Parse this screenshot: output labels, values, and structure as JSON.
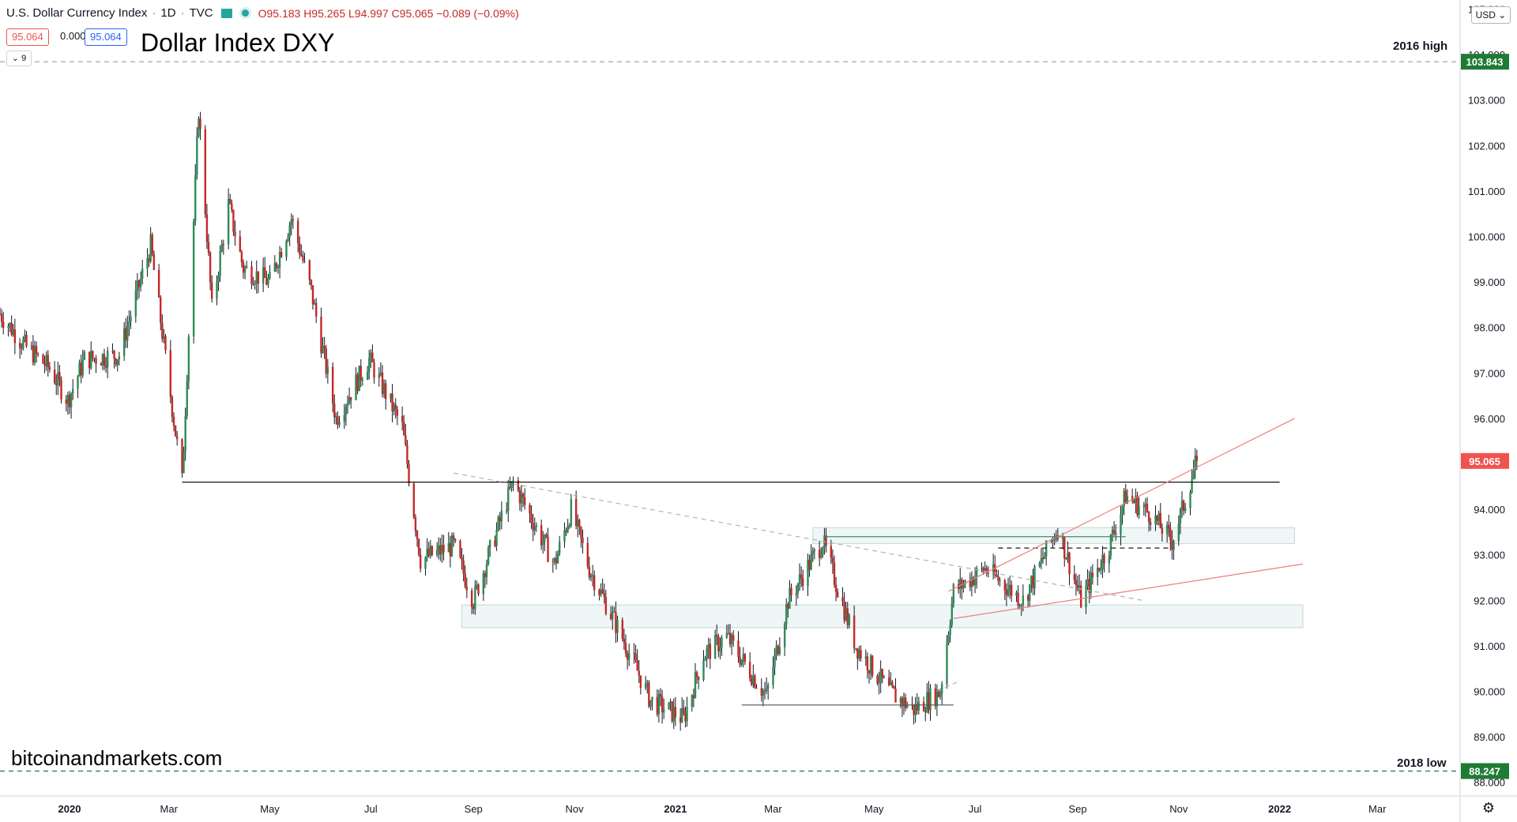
{
  "header": {
    "symbol": "U.S. Dollar Currency Index",
    "interval": "1D",
    "source": "TVC",
    "ohlc": "O95.183 H95.265 L94.997 C95.065 −0.089 (−0.09%)",
    "bid": "95.064",
    "spread": "0.000",
    "ask": "95.064",
    "indicator_count": "9",
    "currency": "USD"
  },
  "annotations": {
    "title_note": "Dollar Index DXY",
    "watermark": "bitcoinandmarkets.com",
    "high_label": "2016 high",
    "low_label": "2018 low"
  },
  "colors": {
    "up": "#26a69a",
    "down": "#ef5350",
    "candle_body_up": "#2e8b57",
    "candle_body_down": "#c62828",
    "last_price": "#ef5350",
    "level_marker": "#1e7b34",
    "trendline": "#ef7c7c",
    "zone_fill": "#e0eeee"
  },
  "chart_data": {
    "type": "candlestick",
    "y_axis_ticks": [
      "105.000",
      "104.000",
      "103.000",
      "102.000",
      "101.000",
      "100.000",
      "99.000",
      "98.000",
      "97.000",
      "96.000",
      "95.000",
      "94.000",
      "93.000",
      "92.000",
      "91.000",
      "90.000",
      "89.000",
      "88.000"
    ],
    "y_ticks_values": [
      105,
      104,
      103,
      102,
      101,
      100,
      99,
      98,
      97,
      96,
      95,
      94,
      93,
      92,
      91,
      90,
      89,
      88
    ],
    "x_axis_ticks": [
      {
        "label": "2020",
        "date": "2020-01-01",
        "bold": true
      },
      {
        "label": "Mar",
        "date": "2020-03-01",
        "bold": false
      },
      {
        "label": "May",
        "date": "2020-05-01",
        "bold": false
      },
      {
        "label": "Jul",
        "date": "2020-07-01",
        "bold": false
      },
      {
        "label": "Sep",
        "date": "2020-09-01",
        "bold": false
      },
      {
        "label": "Nov",
        "date": "2020-11-01",
        "bold": false
      },
      {
        "label": "2021",
        "date": "2021-01-01",
        "bold": true
      },
      {
        "label": "Mar",
        "date": "2021-03-01",
        "bold": false
      },
      {
        "label": "May",
        "date": "2021-05-01",
        "bold": false
      },
      {
        "label": "Jul",
        "date": "2021-07-01",
        "bold": false
      },
      {
        "label": "Sep",
        "date": "2021-09-01",
        "bold": false
      },
      {
        "label": "Nov",
        "date": "2021-11-01",
        "bold": false
      },
      {
        "label": "2022",
        "date": "2022-01-01",
        "bold": true
      },
      {
        "label": "Mar",
        "date": "2022-03-01",
        "bold": false
      }
    ],
    "x_range": [
      "2019-11-20",
      "2022-04-20"
    ],
    "y_range": [
      87.7,
      105.2
    ],
    "price_path": [
      [
        "2019-11-20",
        98.3
      ],
      [
        "2019-12-05",
        97.6
      ],
      [
        "2019-12-20",
        97.1
      ],
      [
        "2019-12-31",
        96.4
      ],
      [
        "2020-01-10",
        97.3
      ],
      [
        "2020-01-31",
        97.4
      ],
      [
        "2020-02-19",
        99.8
      ],
      [
        "2020-03-09",
        94.6
      ],
      [
        "2020-03-19",
        102.8
      ],
      [
        "2020-03-27",
        98.4
      ],
      [
        "2020-04-06",
        100.7
      ],
      [
        "2020-04-15",
        99.3
      ],
      [
        "2020-05-01",
        99.0
      ],
      [
        "2020-05-14",
        100.4
      ],
      [
        "2020-05-26",
        98.8
      ],
      [
        "2020-06-10",
        96.0
      ],
      [
        "2020-06-30",
        97.3
      ],
      [
        "2020-07-20",
        95.8
      ],
      [
        "2020-07-31",
        92.9
      ],
      [
        "2020-08-20",
        93.2
      ],
      [
        "2020-09-01",
        92.0
      ],
      [
        "2020-09-25",
        94.6
      ],
      [
        "2020-10-20",
        92.8
      ],
      [
        "2020-10-30",
        94.0
      ],
      [
        "2020-11-10",
        92.7
      ],
      [
        "2020-12-01",
        91.1
      ],
      [
        "2020-12-17",
        89.8
      ],
      [
        "2021-01-06",
        89.4
      ],
      [
        "2021-01-18",
        90.8
      ],
      [
        "2021-02-01",
        91.2
      ],
      [
        "2021-02-25",
        89.9
      ],
      [
        "2021-03-10",
        92.0
      ],
      [
        "2021-03-31",
        93.3
      ],
      [
        "2021-04-20",
        91.0
      ],
      [
        "2021-05-10",
        90.0
      ],
      [
        "2021-05-25",
        89.6
      ],
      [
        "2021-06-10",
        90.0
      ],
      [
        "2021-06-18",
        92.2
      ],
      [
        "2021-07-07",
        92.7
      ],
      [
        "2021-07-30",
        92.0
      ],
      [
        "2021-08-20",
        93.6
      ],
      [
        "2021-09-03",
        92.0
      ],
      [
        "2021-09-20",
        93.2
      ],
      [
        "2021-09-30",
        94.3
      ],
      [
        "2021-10-15",
        93.9
      ],
      [
        "2021-10-28",
        93.3
      ],
      [
        "2021-11-05",
        94.2
      ],
      [
        "2021-11-12",
        95.1
      ]
    ],
    "levels": [
      {
        "price": 103.843,
        "label": "103.843",
        "style": "dashed",
        "color": "#9e9e9e",
        "marker_color": "#1e7b34",
        "from": "2019-11-20",
        "to": "2022-04-20"
      },
      {
        "price": 88.247,
        "label": "88.247",
        "style": "dashed",
        "color": "#1e7b34",
        "marker_color": "#1e7b34",
        "from": "2019-11-20",
        "to": "2022-04-20"
      },
      {
        "price": 94.6,
        "style": "solid",
        "color": "#000000",
        "from": "2020-03-09",
        "to": "2022-01-01"
      },
      {
        "price": 89.7,
        "style": "solid",
        "color": "#555555",
        "from": "2021-02-10",
        "to": "2021-06-18"
      },
      {
        "price": 93.4,
        "style": "solid",
        "color": "#2e8b57",
        "from": "2021-04-01",
        "to": "2021-09-30"
      },
      {
        "price": 93.15,
        "style": "dashed",
        "color": "#000000",
        "from": "2021-07-15",
        "to": "2021-10-28"
      }
    ],
    "zones": [
      {
        "from": "2020-08-25",
        "to": "2022-01-15",
        "low": 91.4,
        "high": 91.9
      },
      {
        "from": "2021-03-25",
        "to": "2022-01-10",
        "low": 93.25,
        "high": 93.6
      }
    ],
    "trendlines": [
      {
        "x1": "2021-06-15",
        "y1": 92.2,
        "x2": "2022-01-10",
        "y2": 96.0,
        "color": "#ef7c7c",
        "style": "solid"
      },
      {
        "x1": "2021-06-18",
        "y1": 91.6,
        "x2": "2022-01-15",
        "y2": 92.8,
        "color": "#ef7c7c",
        "style": "solid"
      },
      {
        "x1": "2020-08-20",
        "y1": 94.8,
        "x2": "2021-10-10",
        "y2": 92.0,
        "color": "#b0b4bc",
        "style": "dashed"
      },
      {
        "x1": "2021-06-08",
        "y1": 90.0,
        "x2": "2021-06-20",
        "y2": 90.2,
        "color": "#b0b4bc",
        "style": "dashed"
      }
    ],
    "last_price": {
      "value": 95.065,
      "label": "95.065"
    }
  }
}
